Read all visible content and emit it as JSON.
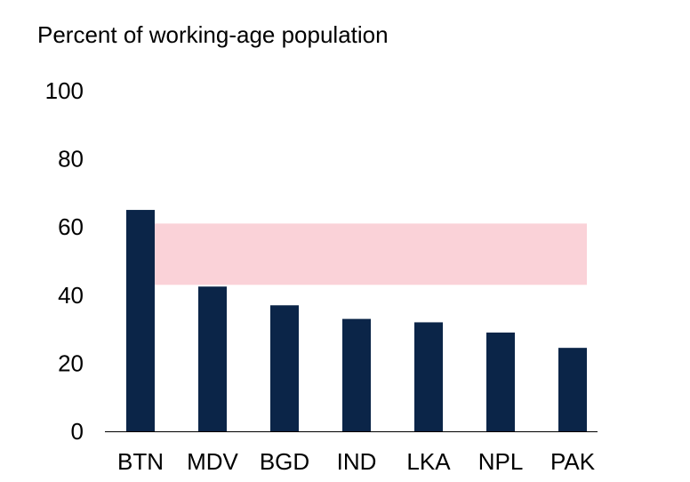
{
  "chart_data": {
    "type": "bar",
    "title": "",
    "subtitle": "Percent of working-age population",
    "xlabel": "",
    "ylabel": "",
    "categories": [
      "BTN",
      "MDV",
      "BGD",
      "IND",
      "LKA",
      "NPL",
      "PAK"
    ],
    "values": [
      65,
      42.5,
      37,
      33,
      32,
      29,
      24.5
    ],
    "ylim": [
      0,
      100
    ],
    "yticks": [
      "0",
      "20",
      "40",
      "60",
      "80",
      "100"
    ],
    "grid": false,
    "legend": "none",
    "shaded_band": {
      "y_range": [
        43,
        61
      ],
      "x_start_category": "BTN",
      "x_end_category": "PAK"
    },
    "colors": {
      "bar": "#0b2548",
      "band": "#fad2d8",
      "axis": "#000000"
    }
  }
}
